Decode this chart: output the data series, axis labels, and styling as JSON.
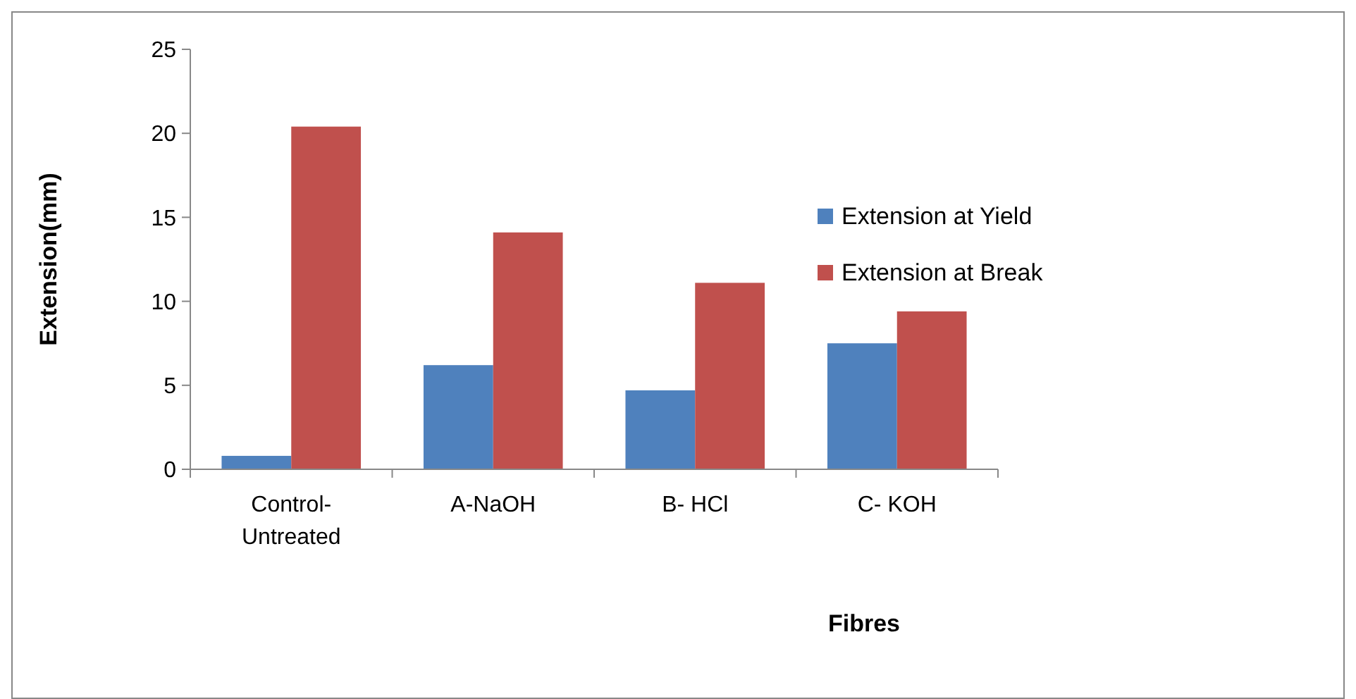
{
  "chart_data": {
    "type": "bar",
    "xlabel": "Fibres",
    "ylabel": "Extension(mm)",
    "categories": [
      "Control-\nUntreated",
      "A-NaOH",
      "B- HCl",
      "C- KOH"
    ],
    "series": [
      {
        "name": "Extension at Yield",
        "color": "#4f81bd",
        "values": [
          0.8,
          6.2,
          4.7,
          7.5
        ]
      },
      {
        "name": "Extension at Break",
        "color": "#c0504d",
        "values": [
          20.4,
          14.1,
          11.1,
          9.4
        ]
      }
    ],
    "ylim": [
      0,
      25
    ],
    "yticks": [
      0,
      5,
      10,
      15,
      20,
      25
    ],
    "grid": false,
    "legend": "right"
  }
}
